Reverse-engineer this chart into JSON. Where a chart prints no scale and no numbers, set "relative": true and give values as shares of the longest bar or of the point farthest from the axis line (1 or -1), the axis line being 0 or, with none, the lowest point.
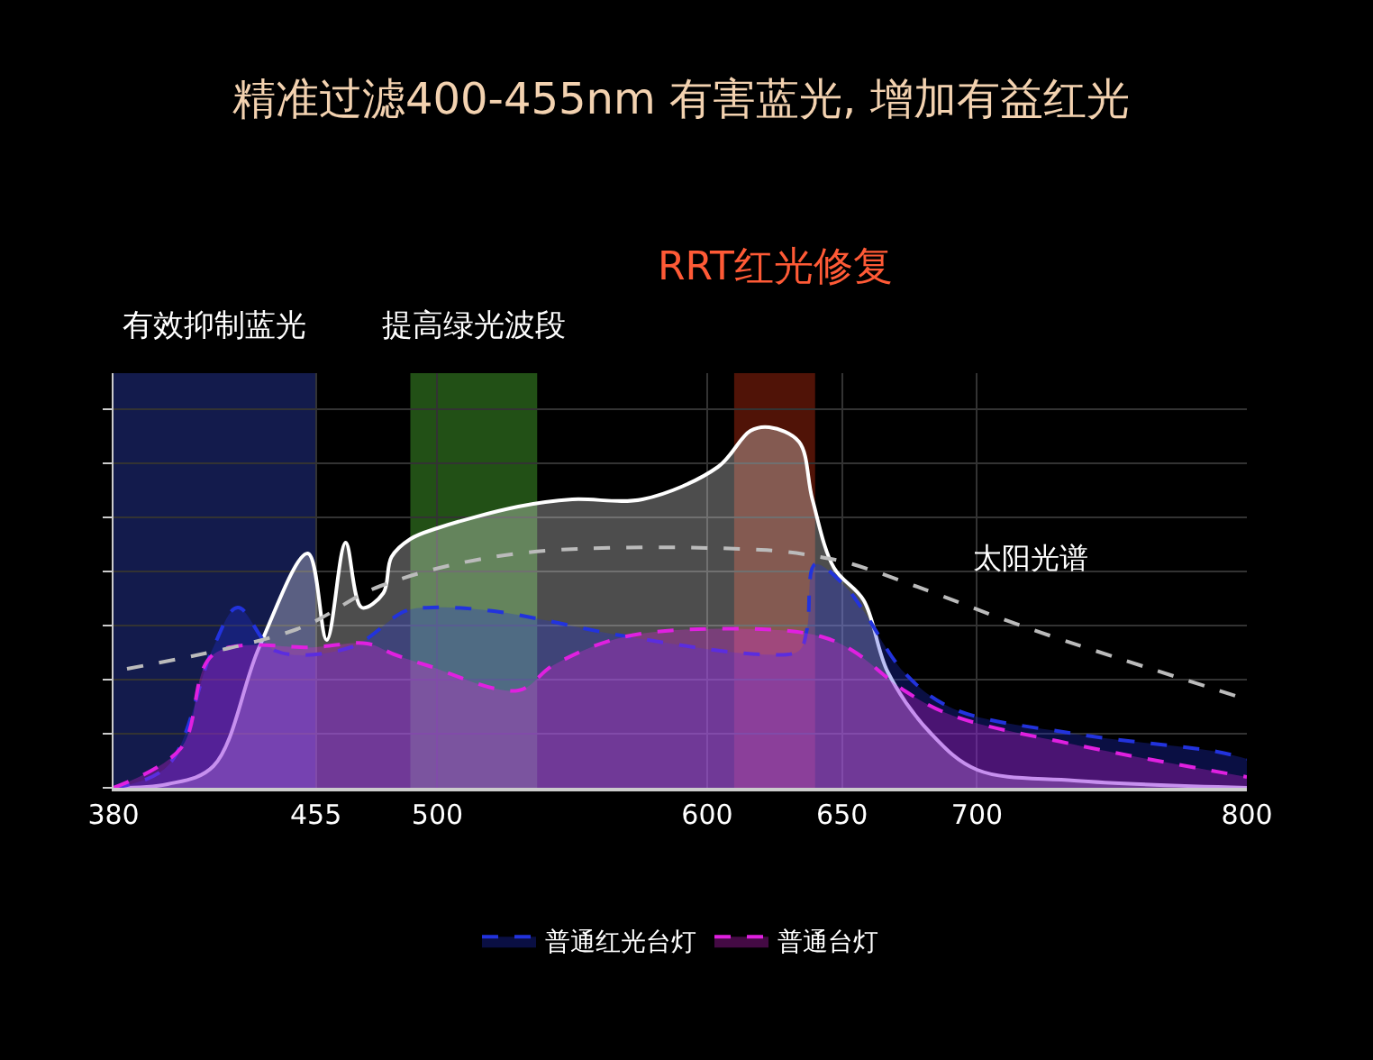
{
  "chart_data": {
    "type": "area",
    "title": "精准过滤400-455nm 有害蓝光, 增加有益红光",
    "relative": true,
    "xlim": [
      380,
      800
    ],
    "xticks": [
      380,
      455,
      500,
      600,
      650,
      700,
      800
    ],
    "series": [
      {
        "color": "#ffffff",
        "x": [
          380,
          400,
          417,
          434,
          452,
          459,
          466,
          472,
          480,
          483,
          490,
          500,
          530,
          550,
          576,
          604,
          616,
          623,
          634,
          639,
          647,
          658,
          667,
          683,
          700,
          736,
          800
        ],
        "values": [
          0,
          0.01,
          0.06,
          0.39,
          0.65,
          0.41,
          0.68,
          0.5,
          0.54,
          0.64,
          0.69,
          0.72,
          0.78,
          0.8,
          0.8,
          0.89,
          0.99,
          1,
          0.96,
          0.8,
          0.61,
          0.52,
          0.32,
          0.15,
          0.05,
          0.02,
          0
        ],
        "line_style": "solid"
      },
      {
        "name": "普通红光台灯",
        "color": "#2233dd",
        "x": [
          380,
          400,
          417,
          426,
          440,
          468,
          488,
          498,
          521,
          570,
          620,
          634,
          637,
          640,
          651,
          658,
          673,
          691,
          736,
          789,
          800
        ],
        "values": [
          0,
          0.06,
          0.39,
          0.5,
          0.38,
          0.39,
          0.49,
          0.5,
          0.49,
          0.42,
          0.37,
          0.38,
          0.44,
          0.62,
          0.56,
          0.49,
          0.32,
          0.22,
          0.15,
          0.1,
          0.08
        ],
        "line_style": "dashed"
      },
      {
        "name": "普通台灯",
        "color": "#e020e0",
        "x": [
          380,
          405,
          417,
          455,
          474,
          484,
          496,
          530,
          543,
          570,
          620,
          642,
          654,
          673,
          691,
          736,
          800
        ],
        "values": [
          0,
          0.11,
          0.37,
          0.39,
          0.4,
          0.37,
          0.34,
          0.27,
          0.34,
          0.42,
          0.44,
          0.42,
          0.38,
          0.27,
          0.2,
          0.12,
          0.03
        ],
        "line_style": "dashed"
      },
      {
        "name": "太阳光谱",
        "type": "line",
        "color": "#bbbbbb",
        "x": [
          385,
          448,
          479,
          530,
          620,
          642,
          654,
          677,
          720,
          798
        ],
        "values": [
          0.33,
          0.44,
          0.56,
          0.65,
          0.66,
          0.64,
          0.62,
          0.56,
          0.44,
          0.25
        ],
        "line_style": "dashed"
      }
    ],
    "bands": [
      {
        "axis": "x",
        "from": 380,
        "to": 455,
        "label": "有效抑制蓝光",
        "color": "#1a2466"
      },
      {
        "axis": "x",
        "from": 490,
        "to": 537,
        "label": "提高绿光波段",
        "color": "#2e6b1e"
      },
      {
        "axis": "x",
        "from": 610,
        "to": 640,
        "label": "RRT红光修复",
        "color": "#6b1a0a"
      }
    ],
    "grid": true,
    "legend": "bottom",
    "marker": "none"
  }
}
